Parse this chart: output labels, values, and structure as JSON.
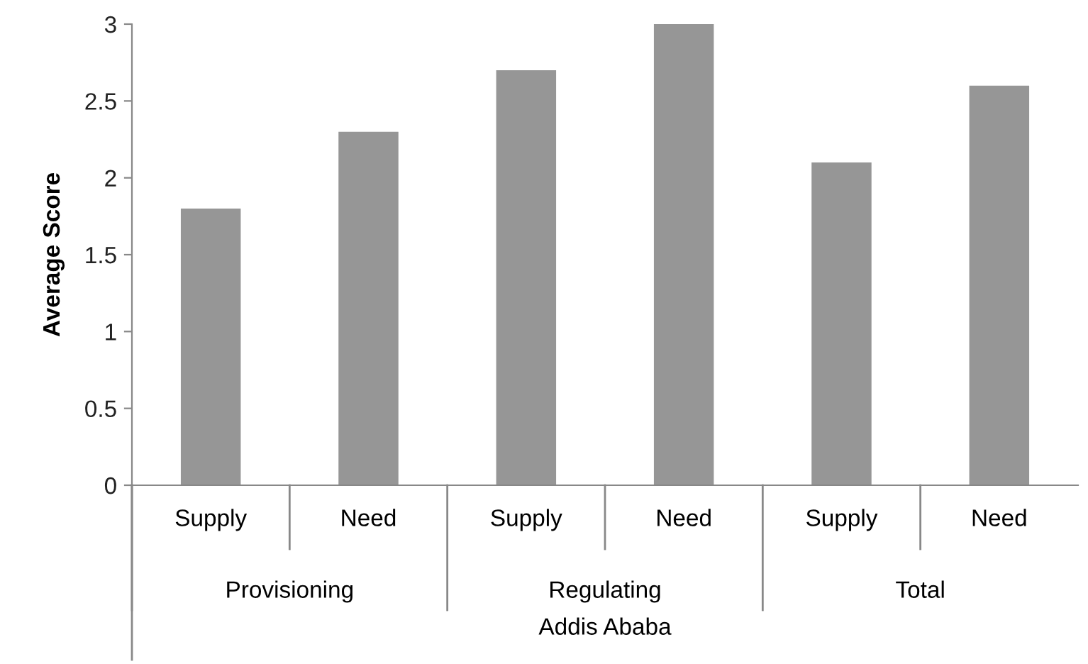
{
  "chart_data": {
    "type": "bar",
    "ylabel": "Average Score",
    "xlabel": "Addis Ababa",
    "categories": [
      "Supply",
      "Need",
      "Supply",
      "Need",
      "Supply",
      "Need"
    ],
    "values": [
      1.8,
      2.3,
      2.7,
      3.0,
      2.1,
      2.6
    ],
    "color": "#969696",
    "annotations": [
      "Provisioning",
      "Regulating",
      "Total"
    ],
    "ylim": [
      0,
      3
    ],
    "yticks": [
      0,
      0.5,
      1,
      1.5,
      2,
      2.5,
      3
    ],
    "grid": false,
    "legend": false
  }
}
